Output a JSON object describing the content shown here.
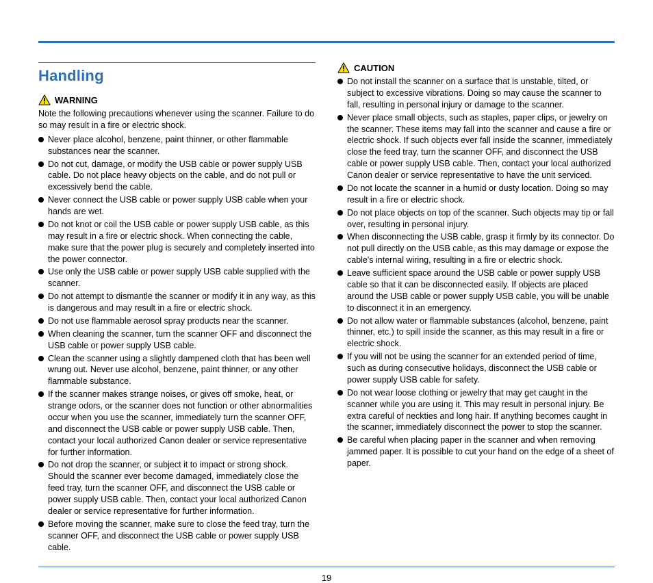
{
  "colors": {
    "accent": "#2e6fb7",
    "text": "#000000",
    "tri_fill": "#ffdd00",
    "tri_stroke": "#000000",
    "bg": "#ffffff"
  },
  "page_number": "19",
  "left": {
    "section_title": "Handling",
    "warning_label": "WARNING",
    "intro": "Note the following precautions whenever using the scanner. Failure to do so may result in a fire or electric shock.",
    "items": [
      "Never place alcohol, benzene, paint thinner, or other flammable substances near the scanner.",
      "Do not cut, damage, or modify the USB cable or power supply USB cable. Do not place heavy objects on the cable, and do not pull or excessively bend the cable.",
      "Never connect the USB cable or power supply USB cable when your hands are wet.",
      "Do not knot or coil the USB cable or power supply USB cable, as this may result in a fire or electric shock. When connecting the cable, make sure that the power plug is securely and completely inserted into the power connector.",
      "Use only the USB cable or power supply USB cable supplied with the scanner.",
      "Do not attempt to dismantle the scanner or modify it in any way, as this is dangerous and may result in a fire or electric shock.",
      "Do not use flammable aerosol spray products near the scanner.",
      "When cleaning the scanner, turn the scanner OFF and disconnect the USB cable or power supply USB cable.",
      "Clean the scanner using a slightly dampened cloth that has been well wrung out. Never use alcohol, benzene, paint thinner, or any other flammable substance.",
      "If the scanner makes strange noises, or gives off smoke, heat, or strange odors, or the scanner does not function or other abnormalities occur when you use the scanner, immediately turn the scanner OFF, and disconnect the USB cable or power supply USB cable. Then, contact your local authorized Canon dealer or service representative for further information.",
      "Do not drop the scanner, or subject it to impact or strong shock. Should the scanner ever become damaged, immediately close the feed tray, turn the scanner OFF, and disconnect the USB cable or power supply USB cable. Then, contact your local authorized Canon dealer or service representative for further information.",
      "Before moving the scanner, make sure to close the feed tray, turn the scanner OFF, and disconnect the USB cable or power supply USB cable."
    ]
  },
  "right": {
    "caution_label": "CAUTION",
    "items": [
      "Do not install the scanner on a surface that is unstable, tilted, or subject to excessive vibrations. Doing so may cause the scanner to fall, resulting in personal injury or damage to the scanner.",
      "Never place small objects, such as staples, paper clips, or jewelry on the scanner. These items may fall into the scanner and cause a fire or electric shock. If such objects ever fall inside the scanner, immediately close the feed tray, turn the scanner OFF, and disconnect the USB cable or power supply USB cable. Then, contact your local authorized Canon dealer or service representative to have the unit serviced.",
      "Do not locate the scanner in a humid or dusty location. Doing so may result in a fire or electric shock.",
      "Do not place objects on top of the scanner. Such objects may tip or fall over, resulting in personal injury.",
      "When disconnecting the USB cable, grasp it firmly by its connector. Do not pull directly on the USB cable, as this may damage or expose the cable's internal wiring, resulting in a fire or electric shock.",
      "Leave sufficient space around the USB cable or power supply USB cable so that it can be disconnected easily. If objects are placed around the USB cable or power supply USB cable, you will be unable to disconnect it in an emergency.",
      "Do not allow water or flammable substances (alcohol, benzene, paint thinner, etc.) to spill inside the scanner, as this may result in a fire or electric shock.",
      "If you will not be using the scanner for an extended period of time, such as during consecutive holidays, disconnect the USB cable or power supply USB cable for safety.",
      "Do not wear loose clothing or jewelry that may get caught in the scanner while you are using it. This may result in personal injury. Be extra careful of neckties and long hair. If anything becomes caught in the scanner, immediately disconnect the power to stop the scanner.",
      "Be careful when placing paper in the scanner and when removing jammed paper. It is possible to cut your hand on the edge of a sheet of paper."
    ]
  }
}
